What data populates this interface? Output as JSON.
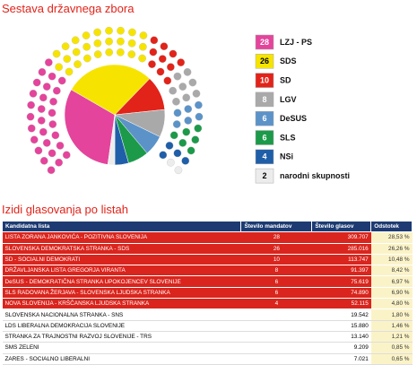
{
  "chart_data": {
    "type": "pie",
    "title": "Sestava državnega zbora",
    "categories": [
      "LZJ - PS",
      "SDS",
      "SD",
      "LGV",
      "DeSUS",
      "SLS",
      "NSi",
      "narodni skupnosti"
    ],
    "values": [
      28,
      26,
      10,
      8,
      6,
      6,
      4,
      2
    ],
    "colors": [
      "#e4449c",
      "#f6e400",
      "#e2231a",
      "#a9a9a9",
      "#5b93c9",
      "#1c9a4a",
      "#1f5ea8",
      "#ececec"
    ]
  },
  "table": {
    "title": "Izidi glasovanja po listah",
    "columns": [
      "Kandidatna lista",
      "Število mandatov",
      "Število glasov",
      "Odstotek"
    ],
    "rows": [
      {
        "name": "LISTA ZORANA JANKOVIĆA - POZITIVNA SLOVENIJA",
        "seats": "28",
        "votes": "309.707",
        "percent": "28,53 %"
      },
      {
        "name": "SLOVENSKA DEMOKRATSKA STRANKA - SDS",
        "seats": "26",
        "votes": "285.016",
        "percent": "26,26 %"
      },
      {
        "name": "SD - SOCIALNI DEMOKRATI",
        "seats": "10",
        "votes": "113.747",
        "percent": "10,48 %"
      },
      {
        "name": "DRŽAVLJANSKA LISTA GREGORJA VIRANTA",
        "seats": "8",
        "votes": "91.397",
        "percent": "8,42 %"
      },
      {
        "name": "DeSUS - DEMOKRATIČNA STRANKA UPOKOJENCEV SLOVENIJE",
        "seats": "6",
        "votes": "75.619",
        "percent": "6,97 %"
      },
      {
        "name": "SLS RADOVANA ŽERJAVA - SLOVENSKA LJUDSKA STRANKA",
        "seats": "6",
        "votes": "74.890",
        "percent": "6,90 %"
      },
      {
        "name": "NOVA SLOVENIJA - KRŠČANSKA LJUDSKA STRANKA",
        "seats": "4",
        "votes": "52.115",
        "percent": "4,80 %"
      },
      {
        "name": "SLOVENSKA NACIONALNA STRANKA - SNS",
        "votes": "19.542",
        "percent": "1,80 %"
      },
      {
        "name": "LDS LIBERALNA DEMOKRACIJA SLOVENIJE",
        "votes": "15.880",
        "percent": "1,46 %"
      },
      {
        "name": "STRANKA ZA TRAJNOSTNI RAZVOJ SLOVENIJE - TRS",
        "votes": "13.140",
        "percent": "1,21 %"
      },
      {
        "name": "SMS ZELENI",
        "votes": "9.209",
        "percent": "0,85 %"
      },
      {
        "name": "ZARES - SOCIALNO LIBERALNI",
        "votes": "7.021",
        "percent": "0,65 %"
      }
    ]
  }
}
